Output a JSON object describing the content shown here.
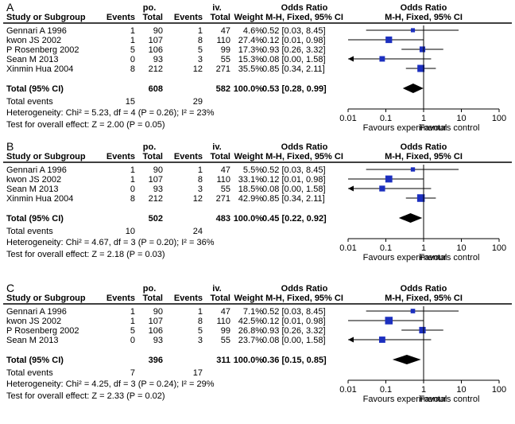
{
  "headers": {
    "study": "Study or Subgroup",
    "group1": "po.",
    "group2": "iv.",
    "events": "Events",
    "total": "Total",
    "weight": "Weight",
    "or_title": "Odds Ratio",
    "method": "M-H, Fixed, 95% CI"
  },
  "chart_data": [
    {
      "type": "forest",
      "panel": "A",
      "axis": {
        "scale": "log",
        "ticks": [
          0.01,
          0.1,
          1,
          10,
          100
        ],
        "tick_labels": [
          "0.01",
          "0.1",
          "1",
          "10",
          "100"
        ],
        "left_label": "Favours experimental",
        "right_label": "Favours control"
      },
      "studies": [
        {
          "name": "Gennari A 1996",
          "e1": "1",
          "t1": "90",
          "e2": "1",
          "t2": "47",
          "weight": "4.6%",
          "ci_text": "0.52 [0.03, 8.45]",
          "or": 0.52,
          "lo": 0.03,
          "hi": 8.45,
          "w": 4.6
        },
        {
          "name": "kwon JS 2002",
          "e1": "1",
          "t1": "107",
          "e2": "8",
          "t2": "110",
          "weight": "27.4%",
          "ci_text": "0.12 [0.01, 0.98]",
          "or": 0.12,
          "lo": 0.01,
          "hi": 0.98,
          "w": 27.4
        },
        {
          "name": "P Rosenberg 2002",
          "e1": "5",
          "t1": "106",
          "e2": "5",
          "t2": "99",
          "weight": "17.3%",
          "ci_text": "0.93 [0.26, 3.32]",
          "or": 0.93,
          "lo": 0.26,
          "hi": 3.32,
          "w": 17.3
        },
        {
          "name": "Sean M 2013",
          "e1": "0",
          "t1": "93",
          "e2": "3",
          "t2": "55",
          "weight": "15.3%",
          "ci_text": "0.08 [0.00, 1.58]",
          "or": 0.08,
          "lo": 0.0,
          "hi": 1.58,
          "w": 15.3
        },
        {
          "name": "Xinmin Hua 2004",
          "e1": "8",
          "t1": "212",
          "e2": "12",
          "t2": "271",
          "weight": "35.5%",
          "ci_text": "0.85 [0.34, 2.11]",
          "or": 0.85,
          "lo": 0.34,
          "hi": 2.11,
          "w": 35.5
        }
      ],
      "total": {
        "label": "Total (95% CI)",
        "t1": "608",
        "t2": "582",
        "weight": "100.0%",
        "ci_text": "0.53 [0.28, 0.99]",
        "or": 0.53,
        "lo": 0.28,
        "hi": 0.99
      },
      "total_events": {
        "label": "Total events",
        "e1": "15",
        "e2": "29"
      },
      "heterogeneity": "Heterogeneity: Chi² = 5.23, df = 4 (P = 0.26); I² = 23%",
      "overall_effect": "Test for overall effect: Z = 2.00 (P = 0.05)"
    },
    {
      "type": "forest",
      "panel": "B",
      "axis": {
        "scale": "log",
        "ticks": [
          0.01,
          0.1,
          1,
          10,
          100
        ],
        "tick_labels": [
          "0.01",
          "0.1",
          "1",
          "10",
          "100"
        ],
        "left_label": "Favours experimental",
        "right_label": "Favours control"
      },
      "studies": [
        {
          "name": "Gennari A 1996",
          "e1": "1",
          "t1": "90",
          "e2": "1",
          "t2": "47",
          "weight": "5.5%",
          "ci_text": "0.52 [0.03, 8.45]",
          "or": 0.52,
          "lo": 0.03,
          "hi": 8.45,
          "w": 5.5
        },
        {
          "name": "kwon JS 2002",
          "e1": "1",
          "t1": "107",
          "e2": "8",
          "t2": "110",
          "weight": "33.1%",
          "ci_text": "0.12 [0.01, 0.98]",
          "or": 0.12,
          "lo": 0.01,
          "hi": 0.98,
          "w": 33.1
        },
        {
          "name": "Sean M 2013",
          "e1": "0",
          "t1": "93",
          "e2": "3",
          "t2": "55",
          "weight": "18.5%",
          "ci_text": "0.08 [0.00, 1.58]",
          "or": 0.08,
          "lo": 0.0,
          "hi": 1.58,
          "w": 18.5
        },
        {
          "name": "Xinmin Hua 2004",
          "e1": "8",
          "t1": "212",
          "e2": "12",
          "t2": "271",
          "weight": "42.9%",
          "ci_text": "0.85 [0.34, 2.11]",
          "or": 0.85,
          "lo": 0.34,
          "hi": 2.11,
          "w": 42.9
        }
      ],
      "total": {
        "label": "Total (95% CI)",
        "t1": "502",
        "t2": "483",
        "weight": "100.0%",
        "ci_text": "0.45 [0.22, 0.92]",
        "or": 0.45,
        "lo": 0.22,
        "hi": 0.92
      },
      "total_events": {
        "label": "Total events",
        "e1": "10",
        "e2": "24"
      },
      "heterogeneity": "Heterogeneity: Chi² = 4.67, df = 3 (P = 0.20); I² = 36%",
      "overall_effect": "Test for overall effect: Z = 2.18 (P = 0.03)"
    },
    {
      "type": "forest",
      "panel": "C",
      "axis": {
        "scale": "log",
        "ticks": [
          0.01,
          0.1,
          1,
          10,
          100
        ],
        "tick_labels": [
          "0.01",
          "0.1",
          "1",
          "10",
          "100"
        ],
        "left_label": "Favours experimental",
        "right_label": "Favours control"
      },
      "studies": [
        {
          "name": "Gennari A 1996",
          "e1": "1",
          "t1": "90",
          "e2": "1",
          "t2": "47",
          "weight": "7.1%",
          "ci_text": "0.52 [0.03, 8.45]",
          "or": 0.52,
          "lo": 0.03,
          "hi": 8.45,
          "w": 7.1
        },
        {
          "name": "kwon JS 2002",
          "e1": "1",
          "t1": "107",
          "e2": "8",
          "t2": "110",
          "weight": "42.5%",
          "ci_text": "0.12 [0.01, 0.98]",
          "or": 0.12,
          "lo": 0.01,
          "hi": 0.98,
          "w": 42.5
        },
        {
          "name": "P Rosenberg 2002",
          "e1": "5",
          "t1": "106",
          "e2": "5",
          "t2": "99",
          "weight": "26.8%",
          "ci_text": "0.93 [0.26, 3.32]",
          "or": 0.93,
          "lo": 0.26,
          "hi": 3.32,
          "w": 26.8
        },
        {
          "name": "Sean M 2013",
          "e1": "0",
          "t1": "93",
          "e2": "3",
          "t2": "55",
          "weight": "23.7%",
          "ci_text": "0.08 [0.00, 1.58]",
          "or": 0.08,
          "lo": 0.0,
          "hi": 1.58,
          "w": 23.7
        }
      ],
      "total": {
        "label": "Total (95% CI)",
        "t1": "396",
        "t2": "311",
        "weight": "100.0%",
        "ci_text": "0.36 [0.15, 0.85]",
        "or": 0.36,
        "lo": 0.15,
        "hi": 0.85
      },
      "total_events": {
        "label": "Total events",
        "e1": "7",
        "e2": "17"
      },
      "heterogeneity": "Heterogeneity: Chi² = 4.25, df = 3 (P = 0.24); I² = 29%",
      "overall_effect": "Test for overall effect: Z = 2.33 (P = 0.02)"
    }
  ],
  "colors": {
    "marker": "#1c2fbf",
    "line": "#000000"
  }
}
